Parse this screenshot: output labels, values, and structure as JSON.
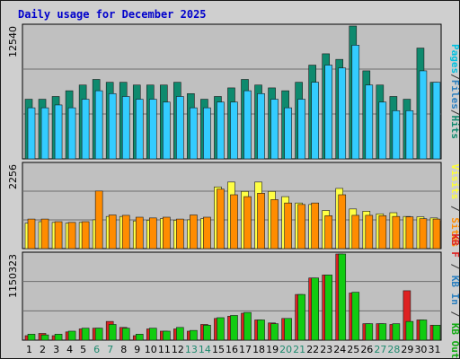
{
  "chart_data": {
    "type": "bar",
    "title": "Daily usage for December 2025",
    "categories": [
      "1",
      "2",
      "3",
      "4",
      "5",
      "6",
      "7",
      "8",
      "9",
      "10",
      "11",
      "12",
      "13",
      "14",
      "15",
      "16",
      "17",
      "18",
      "19",
      "20",
      "21",
      "22",
      "23",
      "24",
      "25",
      "26",
      "27",
      "28",
      "29",
      "30",
      "31"
    ],
    "weekend_days": [
      "6",
      "7",
      "13",
      "14",
      "20",
      "21",
      "27",
      "28"
    ],
    "panels": [
      {
        "ymax_label": "12540",
        "ylim": [
          0,
          12540
        ],
        "legend": [
          {
            "label": "Pages",
            "color": "#00c0e0"
          },
          {
            "label": "/",
            "color": "#333333"
          },
          {
            "label": "Files",
            "color": "#2a7fbf"
          },
          {
            "label": "/",
            "color": "#333333"
          },
          {
            "label": "Hits",
            "color": "#0e8a6e"
          }
        ],
        "series": [
          {
            "name": "Hits",
            "color": "#0e8a6e",
            "values": [
              5630,
              5630,
              5890,
              6430,
              6970,
              7500,
              7230,
              7230,
              6970,
              6970,
              6970,
              7230,
              6160,
              5630,
              5890,
              6700,
              7500,
              6970,
              6700,
              6430,
              7230,
              8850,
              9920,
              9390,
              12540,
              8310,
              6970,
              5890,
              5630,
              10460,
              7230
            ]
          },
          {
            "name": "Pages",
            "color": "#33ccff",
            "values": [
              4820,
              4820,
              5090,
              4820,
              5630,
              6430,
              6160,
              5890,
              5630,
              5630,
              5360,
              5890,
              4820,
              4820,
              5360,
              5360,
              6430,
              6160,
              5630,
              4820,
              5630,
              7230,
              8850,
              8580,
              10730,
              6970,
              5360,
              4550,
              4550,
              8310,
              7230
            ]
          }
        ]
      },
      {
        "ymax_label": "2256",
        "ylim": [
          0,
          2256
        ],
        "legend": [
          {
            "label": "Visits",
            "color": "#ffff33"
          },
          {
            "label": " / ",
            "color": "#333333"
          },
          {
            "label": "Sites",
            "color": "#ff8c00"
          }
        ],
        "series": [
          {
            "name": "Visits",
            "color": "#ffff44",
            "values": [
              680,
              720,
              700,
              680,
              700,
              770,
              860,
              860,
              740,
              760,
              800,
              760,
              770,
              800,
              1650,
              1780,
              1530,
              1780,
              1530,
              1390,
              1220,
              1180,
              1020,
              1610,
              1060,
              1000,
              930,
              960,
              860,
              850,
              820
            ]
          },
          {
            "name": "Sites",
            "color": "#ff8c00",
            "values": [
              790,
              790,
              720,
              700,
              720,
              1540,
              900,
              890,
              840,
              820,
              840,
              790,
              900,
              840,
              1590,
              1440,
              1390,
              1480,
              1310,
              1220,
              1180,
              1220,
              880,
              1440,
              890,
              890,
              880,
              860,
              850,
              800,
              790
            ]
          }
        ]
      },
      {
        "ymax_label": "1150323",
        "ylim": [
          0,
          1150323
        ],
        "legend": [
          {
            "label": "KB F",
            "color": "#dd2222"
          },
          {
            "label": " / ",
            "color": "#333333"
          },
          {
            "label": "KB In",
            "color": "#2a7fbf"
          },
          {
            "label": " / ",
            "color": "#333333"
          },
          {
            "label": "KB Out",
            "color": "#11aa11"
          }
        ],
        "series": [
          {
            "name": "KB F",
            "color": "#dd2222",
            "values": [
              60000,
              90000,
              60000,
              110000,
              150000,
              160000,
              250000,
              170000,
              60000,
              150000,
              120000,
              150000,
              120000,
              210000,
              290000,
              320000,
              360000,
              270000,
              230000,
              290000,
              610000,
              830000,
              870000,
              1150323,
              630000,
              220000,
              220000,
              210000,
              660000,
              270000,
              200000
            ]
          },
          {
            "name": "KB Out",
            "color": "#11cc11",
            "values": [
              80000,
              70000,
              80000,
              120000,
              160000,
              160000,
              210000,
              160000,
              80000,
              160000,
              120000,
              170000,
              130000,
              200000,
              300000,
              330000,
              370000,
              270000,
              220000,
              290000,
              610000,
              830000,
              870000,
              1150323,
              640000,
              220000,
              220000,
              220000,
              250000,
              270000,
              200000
            ]
          }
        ]
      }
    ]
  }
}
